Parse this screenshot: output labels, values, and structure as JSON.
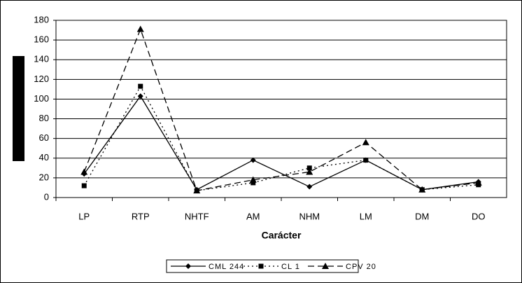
{
  "chart_data": {
    "type": "line",
    "x_label": "Carácter",
    "categories": [
      "LP",
      "RTP",
      "NHTF",
      "AM",
      "NHM",
      "LM",
      "DM",
      "DO"
    ],
    "series": [
      {
        "name": "CML 244",
        "color": "#000000",
        "dash": "none",
        "marker": "diamond",
        "values": [
          24,
          103,
          8,
          38,
          11,
          38,
          8,
          16
        ]
      },
      {
        "name": "CL 1",
        "color": "#000000",
        "dash": "2,4",
        "marker": "square",
        "values": [
          12,
          113,
          7,
          15,
          30,
          38,
          8,
          13
        ]
      },
      {
        "name": "CPV 20",
        "color": "#000000",
        "dash": "9,5",
        "marker": "triangle",
        "values": [
          26,
          171,
          7,
          18,
          26,
          56,
          8,
          15
        ]
      }
    ],
    "ylim": [
      0,
      180
    ],
    "yticks": [
      0,
      20,
      40,
      60,
      80,
      100,
      120,
      140,
      160,
      180
    ],
    "grid": true
  }
}
